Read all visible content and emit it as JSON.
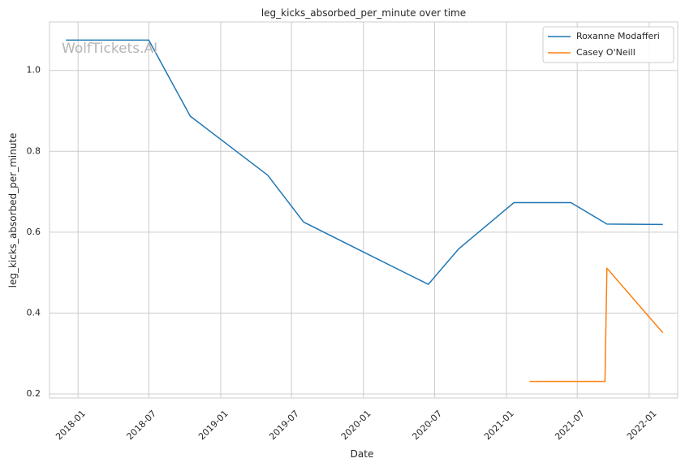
{
  "chart_data": {
    "type": "line",
    "title": "leg_kicks_absorbed_per_minute over time",
    "xlabel": "Date",
    "ylabel": "leg_kicks_absorbed_per_minute",
    "watermark": "WolfTickets.AI",
    "x_ticks": [
      "2018-01",
      "2018-07",
      "2019-01",
      "2019-07",
      "2020-01",
      "2020-07",
      "2021-01",
      "2021-07",
      "2022-01"
    ],
    "y_ticks": [
      0.2,
      0.4,
      0.6,
      0.8,
      1.0
    ],
    "xlim": [
      "2017-10-20",
      "2022-03-15"
    ],
    "ylim": [
      0.19,
      1.12
    ],
    "grid": true,
    "legend_position": "top-right",
    "series": [
      {
        "name": "Roxanne Modafferi",
        "color": "#1f77b4",
        "points": [
          {
            "x": "2017-12-01",
            "y": 1.075
          },
          {
            "x": "2018-07-01",
            "y": 1.075
          },
          {
            "x": "2018-10-15",
            "y": 0.887
          },
          {
            "x": "2019-05-01",
            "y": 0.741
          },
          {
            "x": "2019-08-01",
            "y": 0.625
          },
          {
            "x": "2020-01-01",
            "y": 0.551
          },
          {
            "x": "2020-06-15",
            "y": 0.471
          },
          {
            "x": "2020-09-01",
            "y": 0.559
          },
          {
            "x": "2021-01-20",
            "y": 0.673
          },
          {
            "x": "2021-06-15",
            "y": 0.673
          },
          {
            "x": "2021-09-15",
            "y": 0.62
          },
          {
            "x": "2022-02-05",
            "y": 0.619
          }
        ]
      },
      {
        "name": "Casey O'Neill",
        "color": "#ff7f0e",
        "points": [
          {
            "x": "2021-03-01",
            "y": 0.231
          },
          {
            "x": "2021-09-10",
            "y": 0.231
          },
          {
            "x": "2021-09-15",
            "y": 0.511
          },
          {
            "x": "2022-02-05",
            "y": 0.351
          }
        ]
      }
    ]
  }
}
